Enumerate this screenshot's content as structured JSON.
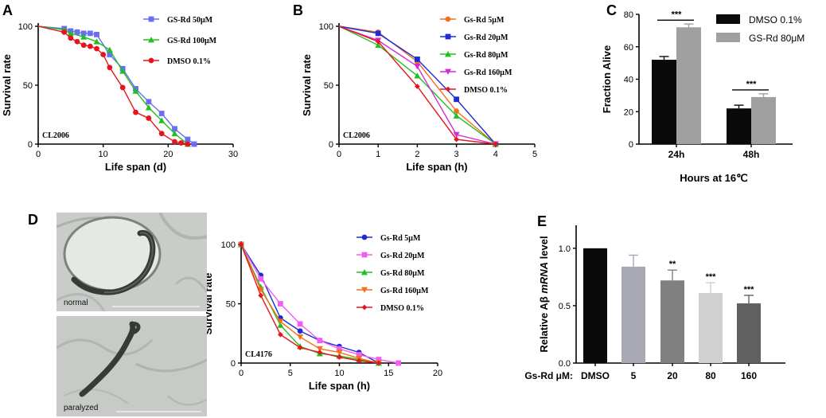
{
  "colors": {
    "blue": "#1f2bd6",
    "periwinkle": "#6a6ef2",
    "red": "#e8141c",
    "green": "#21c021",
    "orange": "#f2701e",
    "magenta": "#d62ad6",
    "pink": "#f25df2",
    "black": "#0a0a0a",
    "gray": "#a0a0a0"
  },
  "chart_data": [
    {
      "panel": "A",
      "type": "line",
      "xlabel": "Life span (d)",
      "ylabel": "Survival rate",
      "strain": "CL2006",
      "xlim": [
        0,
        30
      ],
      "ylim": [
        0,
        100
      ],
      "xticks": [
        "0",
        "10",
        "20",
        "30"
      ],
      "yticks": [
        "0",
        "50",
        "100"
      ],
      "series": [
        {
          "name": "GS-Rd 50μM",
          "color": "#6a6ef2",
          "marker": "square",
          "x": [
            0,
            4,
            5,
            6,
            7,
            8,
            9,
            11,
            13,
            15,
            17,
            19,
            21,
            23,
            24
          ],
          "y": [
            100,
            98,
            96,
            95,
            94,
            94,
            93,
            76,
            64,
            47,
            36,
            26,
            13,
            4,
            0
          ]
        },
        {
          "name": "GS-Rd 100μM",
          "color": "#21c021",
          "marker": "triangle",
          "x": [
            0,
            4,
            5,
            7,
            9,
            11,
            13,
            15,
            17,
            19,
            21,
            23
          ],
          "y": [
            100,
            97,
            94,
            91,
            87,
            80,
            62,
            45,
            31,
            20,
            9,
            0
          ]
        },
        {
          "name": "DMSO 0.1%",
          "color": "#e8141c",
          "marker": "circle",
          "x": [
            0,
            4,
            5,
            6,
            7,
            8,
            9,
            10,
            11,
            13,
            15,
            17,
            19,
            21,
            22,
            23
          ],
          "y": [
            100,
            95,
            90,
            87,
            84,
            83,
            81,
            76,
            65,
            48,
            27,
            22,
            9,
            2,
            1,
            0
          ]
        }
      ]
    },
    {
      "panel": "B",
      "type": "line",
      "xlabel": "Life span (h)",
      "ylabel": "Survival rate",
      "strain": "CL2006",
      "xlim": [
        0,
        5
      ],
      "ylim": [
        0,
        100
      ],
      "xticks": [
        "0",
        "1",
        "2",
        "3",
        "4",
        "5"
      ],
      "yticks": [
        "0",
        "50",
        "100"
      ],
      "series": [
        {
          "name": "Gs-Rd 5μM",
          "color": "#f2701e",
          "marker": "circle",
          "x": [
            0,
            1,
            2,
            3,
            4
          ],
          "y": [
            100,
            95,
            70,
            28,
            0
          ]
        },
        {
          "name": "Gs-Rd 20μM",
          "color": "#1f2bd6",
          "marker": "square",
          "x": [
            0,
            1,
            2,
            3,
            4
          ],
          "y": [
            100,
            94,
            72,
            38,
            0
          ]
        },
        {
          "name": "Gs-Rd 80μM",
          "color": "#21c021",
          "marker": "triangle",
          "x": [
            0,
            1,
            2,
            3,
            4
          ],
          "y": [
            100,
            84,
            58,
            24,
            0
          ]
        },
        {
          "name": "Gs-Rd 160μM",
          "color": "#d62ad6",
          "marker": "triangle-down",
          "x": [
            0,
            1,
            2,
            3,
            4
          ],
          "y": [
            100,
            88,
            66,
            8,
            0
          ]
        },
        {
          "name": "DMSO 0.1%",
          "color": "#e8141c",
          "marker": "diamond",
          "x": [
            0,
            1,
            2,
            3,
            4
          ],
          "y": [
            100,
            87,
            49,
            4,
            0
          ]
        }
      ]
    },
    {
      "panel": "C",
      "type": "bar",
      "xlabel": "Hours at 16℃",
      "ylabel": "Fraction Alive",
      "categories": [
        "24h",
        "48h"
      ],
      "ylim": [
        0,
        80
      ],
      "yticks": [
        "0",
        "20",
        "40",
        "60",
        "80"
      ],
      "series": [
        {
          "name": "DMSO 0.1%",
          "color": "#0a0a0a",
          "values": [
            52,
            22
          ],
          "errors": [
            2,
            2
          ]
        },
        {
          "name": "GS-Rd 80μM",
          "color": "#a0a0a0",
          "values": [
            72,
            29
          ],
          "errors": [
            2,
            2
          ]
        }
      ],
      "annotations": [
        "***",
        "***"
      ]
    },
    {
      "panel": "D",
      "type": "line",
      "xlabel": "Life span (h)",
      "ylabel": "Survival rate",
      "strain": "CL4176",
      "xlim": [
        0,
        20
      ],
      "ylim": [
        0,
        100
      ],
      "xticks": [
        "0",
        "5",
        "10",
        "15",
        "20"
      ],
      "yticks": [
        "0",
        "50",
        "100"
      ],
      "series": [
        {
          "name": "Gs-Rd 5μM",
          "color": "#1f2bd6",
          "marker": "circle",
          "x": [
            0,
            2,
            4,
            6,
            8,
            10,
            12,
            14
          ],
          "y": [
            100,
            74,
            38,
            27,
            19,
            14,
            9,
            0
          ]
        },
        {
          "name": "Gs-Rd 20μM",
          "color": "#f25df2",
          "marker": "square",
          "x": [
            0,
            2,
            4,
            6,
            8,
            10,
            12,
            14,
            16
          ],
          "y": [
            100,
            71,
            50,
            33,
            19,
            12,
            7,
            3,
            0
          ]
        },
        {
          "name": "Gs-Rd 80μM",
          "color": "#21c021",
          "marker": "triangle",
          "x": [
            0,
            2,
            4,
            6,
            8,
            10,
            12,
            14
          ],
          "y": [
            100,
            64,
            32,
            14,
            8,
            6,
            3,
            0
          ]
        },
        {
          "name": "Gs-Rd 160μM",
          "color": "#f2701e",
          "marker": "triangle-down",
          "x": [
            0,
            2,
            4,
            6,
            8,
            10,
            12,
            14
          ],
          "y": [
            100,
            62,
            35,
            22,
            12,
            9,
            4,
            0
          ]
        },
        {
          "name": "DMSO 0.1%",
          "color": "#e8141c",
          "marker": "diamond",
          "x": [
            0,
            2,
            4,
            6,
            8,
            10,
            12,
            14
          ],
          "y": [
            100,
            57,
            24,
            13,
            9,
            5,
            2,
            0
          ]
        }
      ]
    },
    {
      "panel": "E",
      "type": "bar",
      "ylabel_prefix": "Relative Aβ ",
      "ylabel_italic": "mRNA",
      "ylabel_suffix": " level",
      "row_label": "Gs-Rd μM:",
      "categories": [
        "DMSO",
        "5",
        "20",
        "80",
        "160"
      ],
      "values": [
        1.0,
        0.84,
        0.72,
        0.61,
        0.52
      ],
      "errors": [
        0.0,
        0.1,
        0.09,
        0.09,
        0.07
      ],
      "significance": [
        "",
        "",
        "**",
        "***",
        "***"
      ],
      "colors": [
        "#0a0a0a",
        "#a9a9b5",
        "#808080",
        "#d0d0d0",
        "#606060"
      ],
      "ylim": [
        0,
        1.2
      ],
      "yticks": [
        "0.0",
        "0.5",
        "1.0"
      ]
    }
  ],
  "micrographs": {
    "top_label": "normal",
    "bottom_label": "paralyzed"
  }
}
